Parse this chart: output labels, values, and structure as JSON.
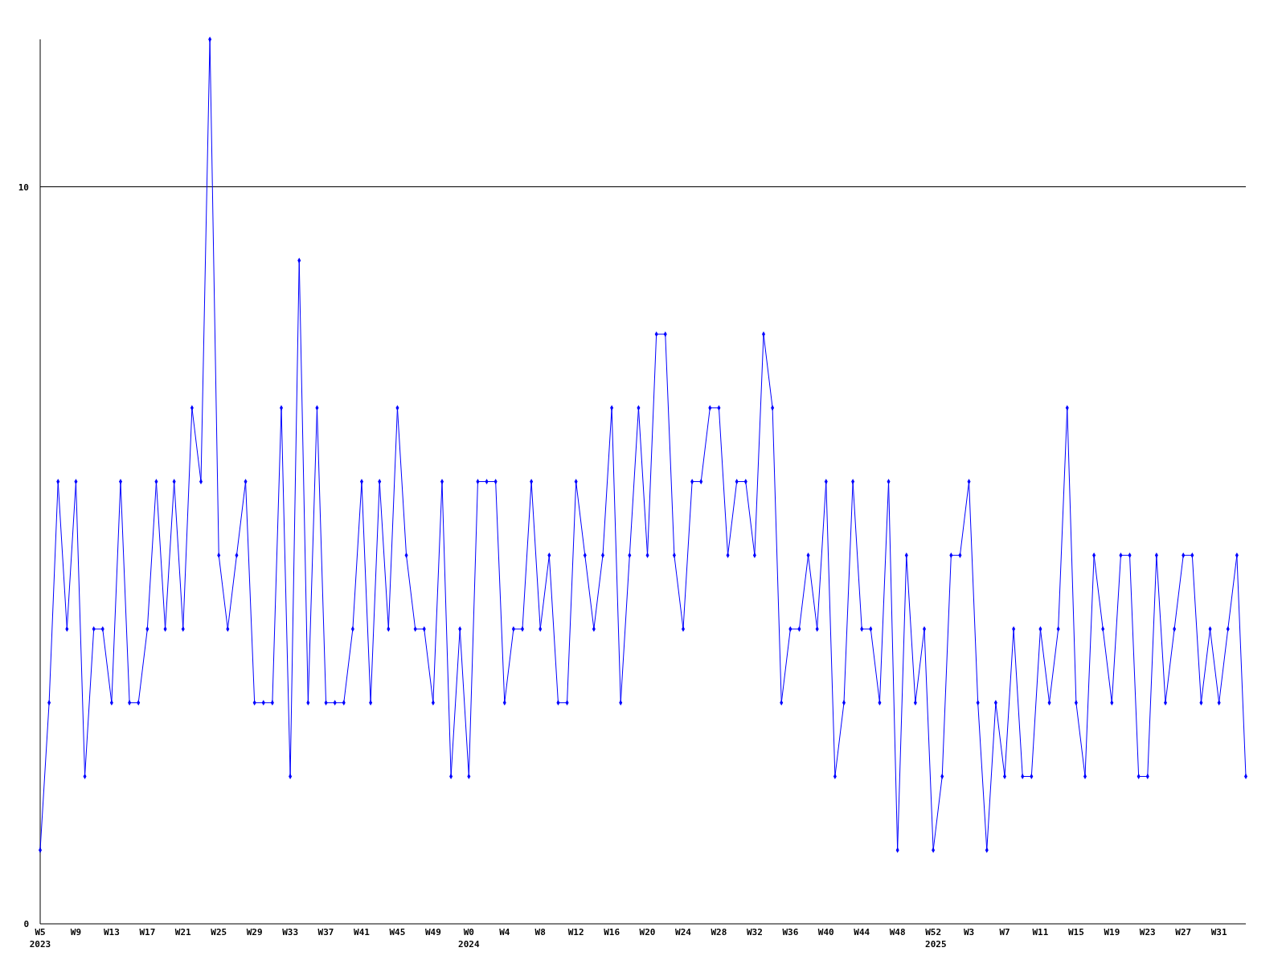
{
  "chart_data": {
    "type": "line",
    "color": "#0000ff",
    "marker": "diamond",
    "line_style": "solid",
    "grid": "y",
    "x": [
      "2023-01-30",
      "2023-02-06",
      "2023-02-13",
      "2023-02-20",
      "2023-02-27",
      "2023-03-06",
      "2023-03-13",
      "2023-03-20",
      "2023-03-27",
      "2023-04-03",
      "2023-04-10",
      "2023-04-17",
      "2023-04-24",
      "2023-05-01",
      "2023-05-08",
      "2023-05-15",
      "2023-05-22",
      "2023-05-29",
      "2023-06-05",
      "2023-06-12",
      "2023-06-19",
      "2023-06-26",
      "2023-07-03",
      "2023-07-10",
      "2023-07-17",
      "2023-07-24",
      "2023-07-31",
      "2023-08-07",
      "2023-08-14",
      "2023-08-21",
      "2023-08-28",
      "2023-09-04",
      "2023-09-11",
      "2023-09-18",
      "2023-09-25",
      "2023-10-02",
      "2023-10-09",
      "2023-10-16",
      "2023-10-23",
      "2023-10-30",
      "2023-11-06",
      "2023-11-13",
      "2023-11-20",
      "2023-11-27",
      "2023-12-04",
      "2023-12-11",
      "2023-12-18",
      "2023-12-25",
      "2024-01-01",
      "2024-01-08",
      "2024-01-15",
      "2024-01-22",
      "2024-01-29",
      "2024-02-05",
      "2024-02-12",
      "2024-02-19",
      "2024-02-26",
      "2024-03-04",
      "2024-03-11",
      "2024-03-18",
      "2024-03-25",
      "2024-04-01",
      "2024-04-08",
      "2024-04-15",
      "2024-04-22",
      "2024-04-29",
      "2024-05-06",
      "2024-05-13",
      "2024-05-20",
      "2024-05-27",
      "2024-06-03",
      "2024-06-10",
      "2024-06-17",
      "2024-06-24",
      "2024-07-01",
      "2024-07-08",
      "2024-07-15",
      "2024-07-22",
      "2024-07-29",
      "2024-08-05",
      "2024-08-12",
      "2024-08-19",
      "2024-08-26",
      "2024-09-02",
      "2024-09-09",
      "2024-09-16",
      "2024-09-23",
      "2024-09-30",
      "2024-10-07",
      "2024-10-14",
      "2024-10-21",
      "2024-10-28",
      "2024-11-04",
      "2024-11-11",
      "2024-11-18",
      "2024-11-25",
      "2024-12-02",
      "2024-12-09",
      "2024-12-16",
      "2024-12-23",
      "2024-12-30",
      "2025-01-06",
      "2025-01-13",
      "2025-01-20",
      "2025-01-27",
      "2025-02-03",
      "2025-02-10",
      "2025-02-17",
      "2025-02-24",
      "2025-03-03",
      "2025-03-10",
      "2025-03-17",
      "2025-03-24",
      "2025-03-31",
      "2025-04-07",
      "2025-04-14",
      "2025-04-21",
      "2025-04-28",
      "2025-05-05",
      "2025-05-12",
      "2025-05-19",
      "2025-05-26",
      "2025-06-02",
      "2025-06-09",
      "2025-06-16",
      "2025-06-23",
      "2025-06-30",
      "2025-07-07",
      "2025-07-14",
      "2025-07-21",
      "2025-07-28",
      "2025-08-04",
      "2025-08-11",
      "2025-08-18",
      "2025-08-25",
      "2025-09-01"
    ],
    "values": [
      1,
      3,
      6,
      4,
      6,
      2,
      4,
      4,
      3,
      6,
      3,
      3,
      4,
      6,
      4,
      6,
      4,
      7,
      6,
      12,
      5,
      4,
      5,
      6,
      3,
      3,
      3,
      7,
      2,
      9,
      3,
      7,
      3,
      3,
      3,
      4,
      6,
      3,
      6,
      4,
      7,
      5,
      4,
      4,
      3,
      6,
      2,
      4,
      2,
      6,
      6,
      6,
      3,
      4,
      4,
      6,
      4,
      5,
      3,
      3,
      6,
      5,
      4,
      5,
      7,
      3,
      5,
      7,
      5,
      8,
      8,
      5,
      4,
      6,
      6,
      7,
      7,
      5,
      6,
      6,
      5,
      8,
      7,
      3,
      4,
      4,
      5,
      4,
      6,
      2,
      3,
      6,
      4,
      4,
      3,
      6,
      1,
      5,
      3,
      4,
      1,
      2,
      5,
      5,
      6,
      3,
      1,
      3,
      2,
      4,
      2,
      2,
      4,
      3,
      4,
      7,
      3,
      2,
      5,
      4,
      3,
      5,
      5,
      2,
      2,
      5,
      3,
      4,
      5,
      5,
      3,
      4,
      3,
      4,
      5,
      2
    ],
    "xlim": [
      "2023-01-30",
      "2025-09-01"
    ],
    "xticks": [
      {
        "value": "2023-01-30",
        "label": "W5"
      },
      {
        "value": "2023-02-27",
        "label": "W9"
      },
      {
        "value": "2023-03-27",
        "label": "W13"
      },
      {
        "value": "2023-04-24",
        "label": "W17"
      },
      {
        "value": "2023-05-22",
        "label": "W21"
      },
      {
        "value": "2023-06-19",
        "label": "W25"
      },
      {
        "value": "2023-07-17",
        "label": "W29"
      },
      {
        "value": "2023-08-14",
        "label": "W33"
      },
      {
        "value": "2023-09-11",
        "label": "W37"
      },
      {
        "value": "2023-10-09",
        "label": "W41"
      },
      {
        "value": "2023-11-06",
        "label": "W45"
      },
      {
        "value": "2023-12-04",
        "label": "W49"
      },
      {
        "value": "2024-01-01",
        "label": "W0"
      },
      {
        "value": "2024-01-29",
        "label": "W4"
      },
      {
        "value": "2024-02-26",
        "label": "W8"
      },
      {
        "value": "2024-03-25",
        "label": "W12"
      },
      {
        "value": "2024-04-22",
        "label": "W16"
      },
      {
        "value": "2024-05-20",
        "label": "W20"
      },
      {
        "value": "2024-06-17",
        "label": "W24"
      },
      {
        "value": "2024-07-15",
        "label": "W28"
      },
      {
        "value": "2024-08-12",
        "label": "W32"
      },
      {
        "value": "2024-09-09",
        "label": "W36"
      },
      {
        "value": "2024-10-07",
        "label": "W40"
      },
      {
        "value": "2024-11-04",
        "label": "W44"
      },
      {
        "value": "2024-12-02",
        "label": "W48"
      },
      {
        "value": "2024-12-30",
        "label": "W52"
      },
      {
        "value": "2025-01-27",
        "label": "W3"
      },
      {
        "value": "2025-02-24",
        "label": "W7"
      },
      {
        "value": "2025-03-24",
        "label": "W11"
      },
      {
        "value": "2025-04-21",
        "label": "W15"
      },
      {
        "value": "2025-05-19",
        "label": "W19"
      },
      {
        "value": "2025-06-16",
        "label": "W23"
      },
      {
        "value": "2025-07-14",
        "label": "W27"
      },
      {
        "value": "2025-08-11",
        "label": "W31"
      }
    ],
    "x2lim": [
      "2023-01-30",
      "2025-09-01"
    ],
    "x2ticks": [
      {
        "value": "2023-01-30",
        "label": "2023"
      },
      {
        "value": "2024-01-01",
        "label": "2024"
      },
      {
        "value": "2025-01-01",
        "label": "2025"
      }
    ],
    "ylim": [
      0,
      12
    ],
    "yticks": [
      0,
      10
    ]
  }
}
